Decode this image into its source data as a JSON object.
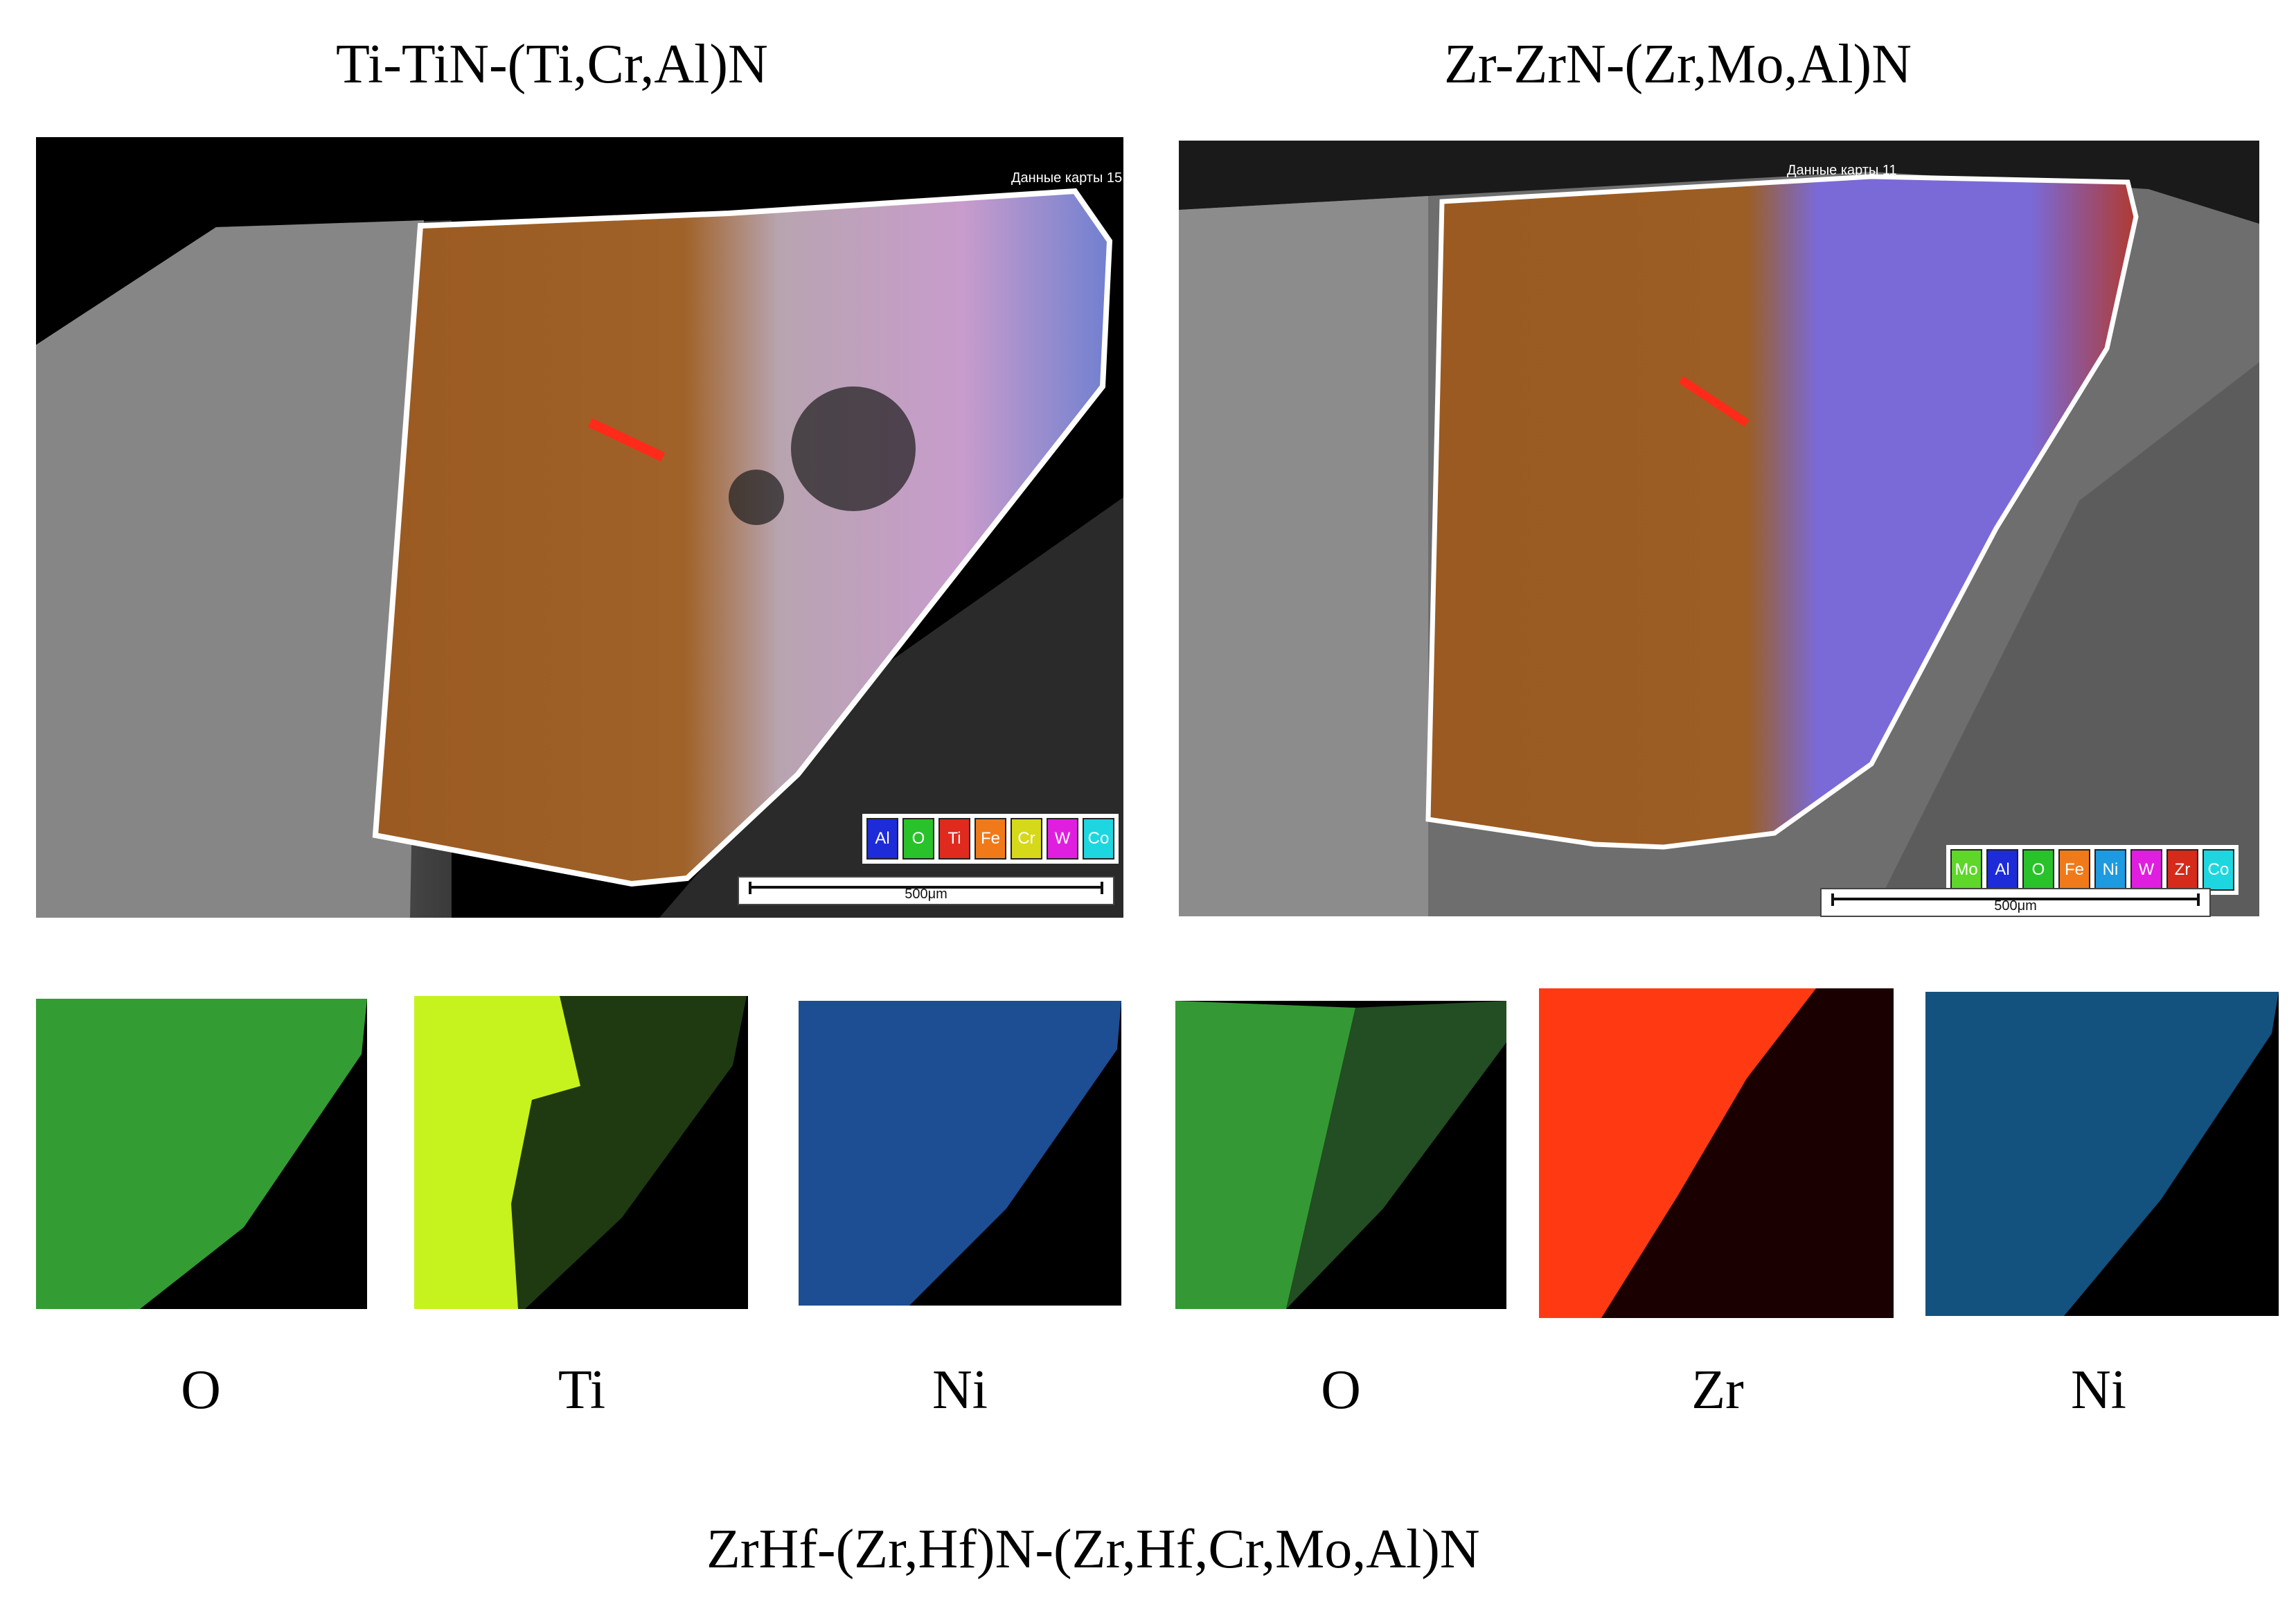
{
  "titles": {
    "left": "Ti-TiN-(Ti,Cr,Al)N",
    "right": "Zr-ZrN-(Zr,Mo,Al)N",
    "bottom": "ZrHf-(Zr,Hf)N-(Zr,Hf,Cr,Mo,Al)N"
  },
  "left_map": {
    "header": "Данные карты 15",
    "scale": "500μm",
    "legend": [
      {
        "label": "Al",
        "color": "#1d2bd8"
      },
      {
        "label": "O",
        "color": "#29c22a"
      },
      {
        "label": "Ti",
        "color": "#e02a1e"
      },
      {
        "label": "Fe",
        "color": "#f07a1a"
      },
      {
        "label": "Cr",
        "color": "#d6d81a"
      },
      {
        "label": "W",
        "color": "#e01ee0"
      },
      {
        "label": "Co",
        "color": "#1ed6e0"
      }
    ]
  },
  "right_map": {
    "header": "Данные карты 11",
    "scale": "500μm",
    "legend": [
      {
        "label": "Mo",
        "color": "#5ed62a"
      },
      {
        "label": "Al",
        "color": "#1d2bd8"
      },
      {
        "label": "O",
        "color": "#29c22a"
      },
      {
        "label": "Fe",
        "color": "#f07a1a"
      },
      {
        "label": "Ni",
        "color": "#1e9ae0"
      },
      {
        "label": "W",
        "color": "#e01ee0"
      },
      {
        "label": "Zr",
        "color": "#d62a1a"
      },
      {
        "label": "Co",
        "color": "#1ed6e0"
      }
    ]
  },
  "element_maps": [
    {
      "label": "O",
      "color": "#2ecc2e"
    },
    {
      "label": "Ti",
      "color": "#c6f21e"
    },
    {
      "label": "Ni",
      "color": "#2a7ee0"
    },
    {
      "label": "O",
      "color": "#2ecc2e"
    },
    {
      "label": "Zr",
      "color": "#ff3a12"
    },
    {
      "label": "Ni",
      "color": "#1a90d8"
    }
  ]
}
